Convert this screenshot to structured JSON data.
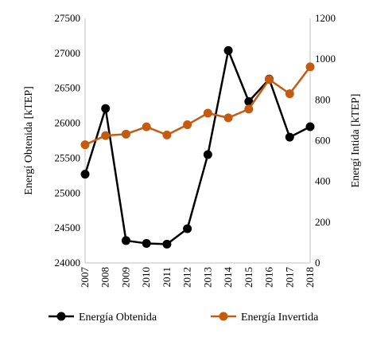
{
  "chart_data": {
    "type": "line",
    "x": [
      "2007",
      "2008",
      "2009",
      "2010",
      "2011",
      "2012",
      "2013",
      "2014",
      "2015",
      "2016",
      "2017",
      "2018"
    ],
    "series": [
      {
        "name": "Energía Obtenida",
        "axis": "left",
        "color": "#000000",
        "values": [
          25270,
          26210,
          24320,
          24280,
          24270,
          24490,
          25550,
          27040,
          26310,
          26630,
          25800,
          25950
        ]
      },
      {
        "name": "Energía Invertida",
        "axis": "right",
        "color": "#C55A11",
        "values": [
          580,
          625,
          632,
          668,
          628,
          678,
          735,
          712,
          755,
          900,
          830,
          962
        ]
      }
    ],
    "y_left": {
      "label": "Energí Obtenida [kTEP]",
      "min": 24000,
      "max": 27500,
      "step": 500
    },
    "y_right": {
      "label": "Energí Intida [kTEP]",
      "min": 0,
      "max": 1200,
      "step": 200
    },
    "grid": false,
    "legend": "bottom"
  }
}
